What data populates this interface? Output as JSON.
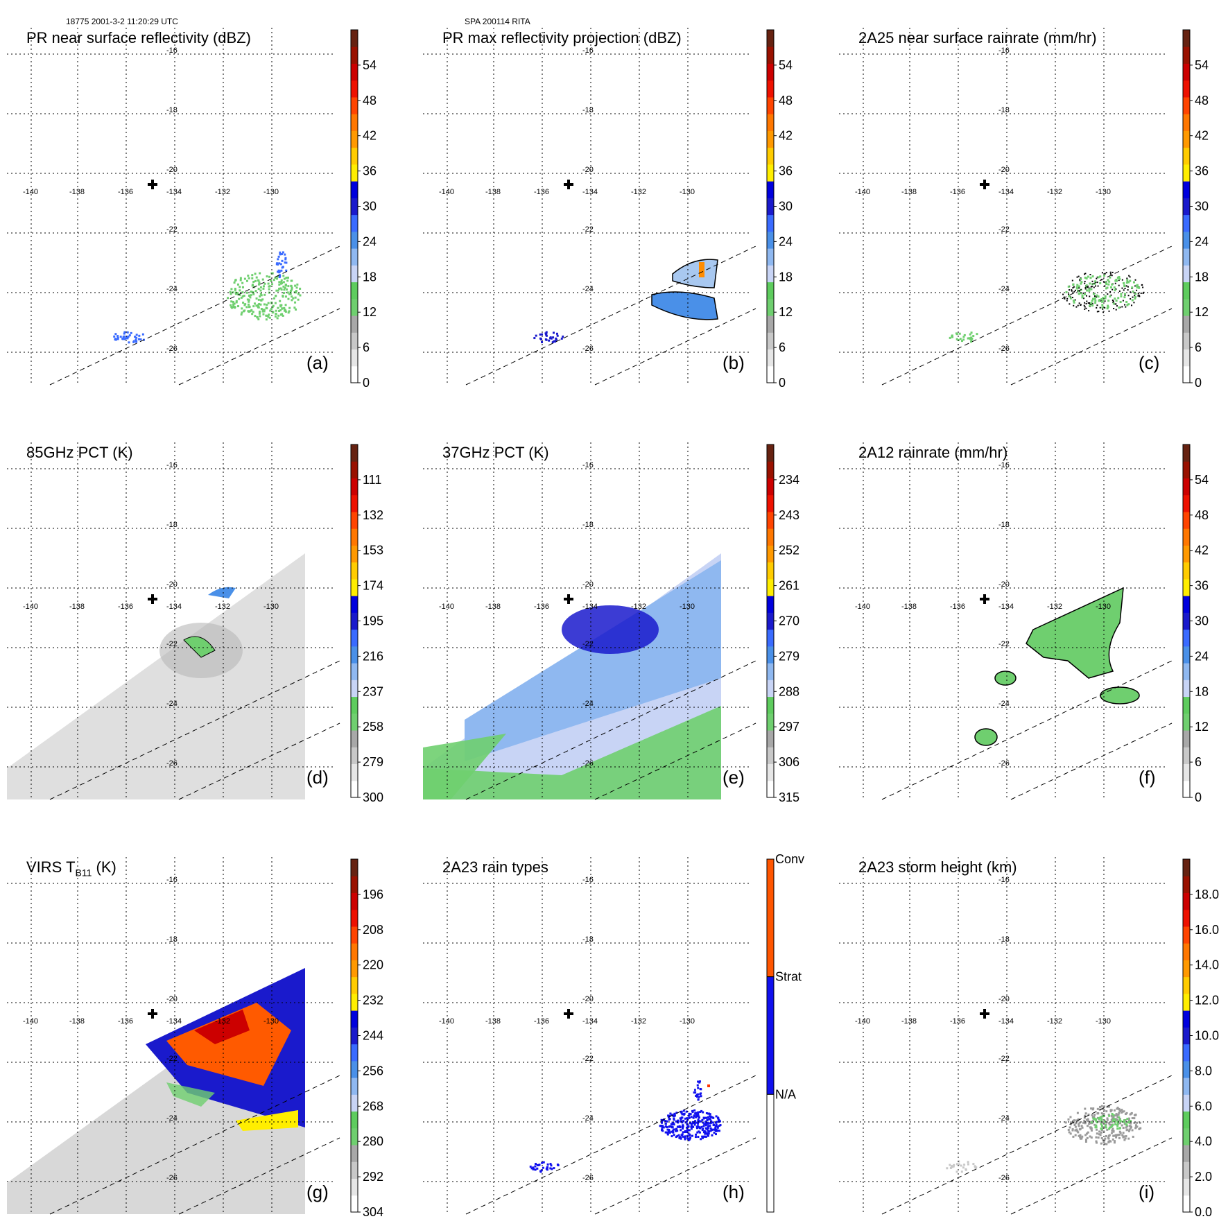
{
  "header": {
    "left": "18775 2001-3-2 11:20:29 UTC",
    "center": "SPA 200114 RITA"
  },
  "map": {
    "lon_labels": [
      "-140",
      "-138",
      "-136",
      "-134",
      "-132",
      "-130"
    ],
    "lat_labels": [
      "-16",
      "-18",
      "-20",
      "-22",
      "-24",
      "-26"
    ],
    "center_marker": "plus-icon"
  },
  "panels": [
    {
      "id": "a",
      "title": "PR near surface reflectivity (dBZ)",
      "label": "(a)",
      "colorbar": {
        "ticks": [
          "0",
          "6",
          "12",
          "18",
          "24",
          "30",
          "36",
          "42",
          "48",
          "54"
        ]
      },
      "field": "pr-sparse",
      "colors": {
        "main": "#6fcf6f",
        "accent": "#3a6bff"
      }
    },
    {
      "id": "b",
      "title": "PR max reflectivity projection (dBZ)",
      "label": "(b)",
      "colorbar": {
        "ticks": [
          "0",
          "6",
          "12",
          "18",
          "24",
          "30",
          "36",
          "42",
          "48",
          "54"
        ]
      },
      "field": "pr-blob",
      "colors": {
        "main": "#4a90e8",
        "accent": "#ff8c00"
      }
    },
    {
      "id": "c",
      "title": "2A25 near surface rainrate (mm/hr)",
      "label": "(c)",
      "colorbar": {
        "ticks": [
          "0",
          "6",
          "12",
          "18",
          "24",
          "30",
          "36",
          "42",
          "48",
          "54"
        ]
      },
      "field": "pr-green",
      "colors": {
        "main": "#6fcf6f",
        "accent": "#000000"
      }
    },
    {
      "id": "d",
      "title": "85GHz PCT (K)",
      "label": "(d)",
      "colorbar": {
        "ticks": [
          "300",
          "279",
          "258",
          "237",
          "216",
          "195",
          "174",
          "153",
          "132",
          "111"
        ]
      },
      "field": "tmi-gray",
      "colors": {
        "main": "#dcdcdc",
        "accent": "#6fcf6f"
      }
    },
    {
      "id": "e",
      "title": "37GHz PCT (K)",
      "label": "(e)",
      "colorbar": {
        "ticks": [
          "315",
          "306",
          "297",
          "288",
          "279",
          "270",
          "261",
          "252",
          "243",
          "234"
        ]
      },
      "field": "tmi-blue",
      "colors": {
        "main": "#8fb8f0",
        "accent": "#1a1acc"
      }
    },
    {
      "id": "f",
      "title": "2A12 rainrate (mm/hr)",
      "label": "(f)",
      "colorbar": {
        "ticks": [
          "0",
          "6",
          "12",
          "18",
          "24",
          "30",
          "36",
          "42",
          "48",
          "54"
        ]
      },
      "field": "tmi-green",
      "colors": {
        "main": "#6fcf6f",
        "accent": "#000000"
      }
    },
    {
      "id": "g",
      "title": "VIRS T",
      "title_sub": "B11",
      "title_suffix": " (K)",
      "label": "(g)",
      "colorbar": {
        "ticks": [
          "304",
          "292",
          "280",
          "268",
          "256",
          "244",
          "232",
          "220",
          "208",
          "196"
        ]
      },
      "field": "virs",
      "colors": {
        "main": "#1a1acc",
        "accent": "#ff5a00"
      }
    },
    {
      "id": "h",
      "title": "2A23 rain types",
      "label": "(h)",
      "colorbar": {
        "ticks": [
          "N/A",
          "Strat",
          "Conv"
        ],
        "type": "categorical"
      },
      "field": "pr-blue-only",
      "colors": {
        "main": "#1010ee",
        "accent": "#ff3300"
      }
    },
    {
      "id": "i",
      "title": "2A23 storm height (km)",
      "label": "(i)",
      "colorbar": {
        "ticks": [
          "0.0",
          "2.0",
          "4.0",
          "6.0",
          "8.0",
          "10.0",
          "12.0",
          "14.0",
          "16.0",
          "18.0"
        ]
      },
      "field": "pr-gray",
      "colors": {
        "main": "#9a9a9a",
        "accent": "#6fcf6f"
      }
    }
  ],
  "colorscale": [
    "#ffffff",
    "#e6e6e6",
    "#c8c8c8",
    "#a8a8a8",
    "#6fcf6f",
    "#5ecc5e",
    "#c8d4f5",
    "#8fb8f0",
    "#4a90e8",
    "#3a6bff",
    "#1a1acc",
    "#0000dd",
    "#ffee00",
    "#ffcc00",
    "#ff9900",
    "#ff7700",
    "#ff4400",
    "#ee1100",
    "#cc0000",
    "#991100",
    "#662211"
  ]
}
